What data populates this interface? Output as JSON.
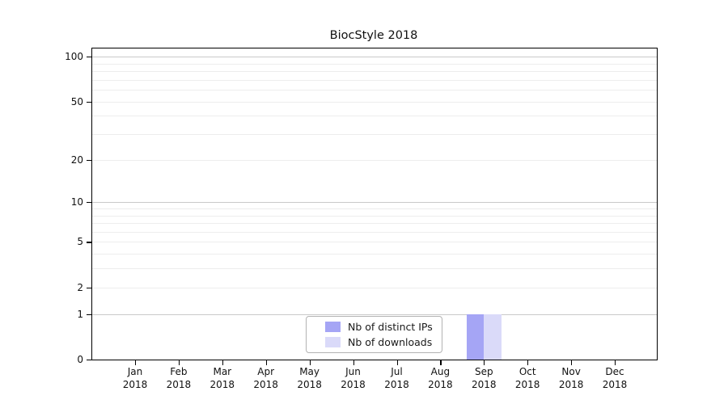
{
  "figure": {
    "background": "#ffffff"
  },
  "chart_data": {
    "type": "bar",
    "title": "BiocStyle 2018",
    "categories": [
      "Jan",
      "Feb",
      "Mar",
      "Apr",
      "May",
      "Jun",
      "Jul",
      "Aug",
      "Sep",
      "Oct",
      "Nov",
      "Dec"
    ],
    "category_year": "2018",
    "series": [
      {
        "name": "Nb of distinct IPs",
        "color": "#a5a5f5",
        "values": [
          0,
          0,
          0,
          0,
          0,
          0,
          0,
          0,
          1,
          0,
          0,
          0
        ]
      },
      {
        "name": "Nb of downloads",
        "color": "#dadaf9",
        "values": [
          0,
          0,
          0,
          0,
          0,
          0,
          0,
          0,
          1,
          0,
          0,
          0
        ]
      }
    ],
    "xlabel": "",
    "ylabel": "",
    "yscale": "log1p",
    "ylim": [
      0,
      113.3
    ],
    "y_tick_labels": [
      0,
      1,
      2,
      5,
      10,
      20,
      50,
      100
    ],
    "y_major_gridlines": [
      1,
      10,
      100
    ],
    "y_minor_gridlines": [
      2,
      3,
      4,
      5,
      6,
      7,
      8,
      9,
      20,
      30,
      40,
      50,
      60,
      70,
      80,
      90
    ],
    "grid": true,
    "legend_position": "lower center",
    "colors": {
      "major_grid": "#c9c9c9",
      "minor_grid": "#ededed",
      "axis": "#000000",
      "text": "#111111"
    }
  }
}
